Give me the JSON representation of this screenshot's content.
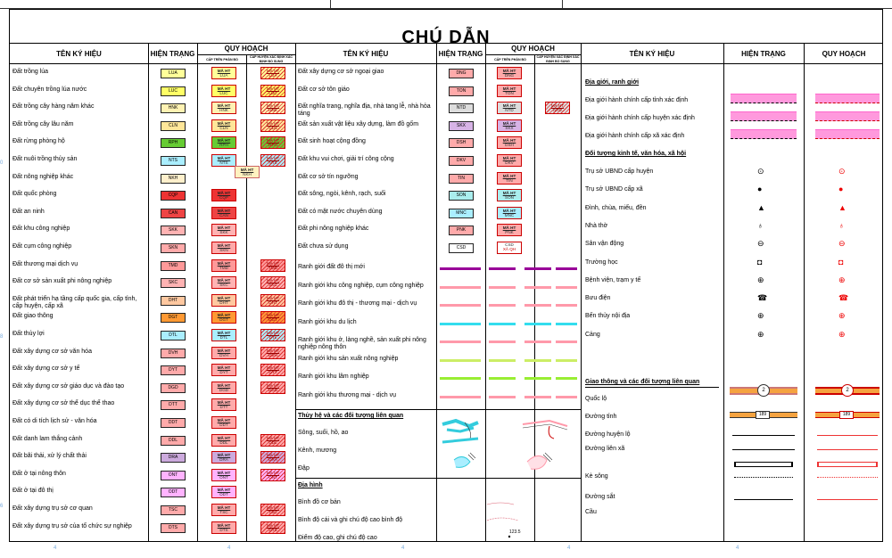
{
  "title": "CHÚ DẪN",
  "headers": {
    "col1_name": "TÊN KÝ HIỆU",
    "col1_current": "HIỆN TRẠNG",
    "col1_plan": "QUY HOẠCH",
    "col1_plan_sub1": "CẤP TRÊN PHÂN BỔ",
    "col1_plan_sub2": "CẤP HUYỆN XÁC ĐỊNH XÁC ĐỊNH BỔ SUNG",
    "col2_name": "TÊN KÝ HIỆU",
    "col2_current": "HIỆN TRẠNG",
    "col2_plan": "QUY HOẠCH",
    "col2_plan_sub1": "CẤP TRÊN PHÂN BỔ",
    "col2_plan_sub2": "CẤP HUYỆN XÁC ĐỊNH XÁC ĐỊNH BỔ SUNG",
    "col3_name": "TÊN KÝ HIỆU",
    "col3_current": "HIỆN TRẠNG",
    "col3_plan": "QUY HOẠCH"
  },
  "plan_text": "MÃ HT",
  "colors": {
    "LUA": "#ffff99",
    "LUC": "#ffff66",
    "HNK": "#fff2b3",
    "CLN": "#ffe699",
    "RPH": "#66cc33",
    "NTS": "#aaeeff",
    "NKH": "#fff0cc",
    "CQP": "#ee3333",
    "CAN": "#ee4444",
    "SKK": "#ffb3b3",
    "SKN": "#ffaaaa",
    "TMD": "#ff9999",
    "SKC": "#ffb3b3",
    "DHT": "#ffc8a0",
    "DGT": "#ff9933",
    "DTL": "#aaeeff",
    "DVH": "#ffaaaa",
    "DYT": "#ffaaaa",
    "DGD": "#ffaaaa",
    "DTT": "#ffaaaa",
    "DDT": "#ffaaaa",
    "DDL": "#ffaaaa",
    "DRA": "#ccaadd",
    "ONT": "#ffb3ff",
    "ODT": "#ffb3ff",
    "TSC": "#ffaaaa",
    "DTS": "#ffaaaa",
    "DNG": "#ffaaaa",
    "TON": "#ffaaaa",
    "NTD": "#dddddd",
    "SKX": "#d7b3e6",
    "DSH": "#ffaaaa",
    "DKV": "#ffaaaa",
    "TIN": "#ffaaaa",
    "SON": "#aaeeee",
    "MNC": "#aaeeff",
    "PNK": "#ffaaaa",
    "CSD": "#ffffff"
  },
  "left": [
    {
      "name": "Đất trồng lúa",
      "code": "LUA",
      "plan_up": true,
      "plan_dist": true
    },
    {
      "name": "Đất chuyên trồng lúa nước",
      "code": "LUC",
      "plan_up": true,
      "plan_dist": true
    },
    {
      "name": "Đất trồng cây hàng năm khác",
      "code": "HNK",
      "plan_up": true,
      "plan_dist": true
    },
    {
      "name": "Đất trồng cây lâu năm",
      "code": "CLN",
      "plan_up": true,
      "plan_dist": true
    },
    {
      "name": "Đất rừng phòng hộ",
      "code": "RPH",
      "plan_up": true,
      "plan_dist": true
    },
    {
      "name": "Đất nuôi trồng thủy sản",
      "code": "NTS",
      "plan_up": true,
      "plan_dist": true
    },
    {
      "name": "Đất nông nghiệp khác",
      "code": "NKH",
      "plan_up": false,
      "plan_dist": false
    },
    {
      "name": "Đất quốc phòng",
      "code": "CQP",
      "plan_up": true,
      "plan_dist": false
    },
    {
      "name": "Đất an ninh",
      "code": "CAN",
      "plan_up": true,
      "plan_dist": false
    },
    {
      "name": "Đất khu công nghiệp",
      "code": "SKK",
      "plan_up": true,
      "plan_dist": false
    },
    {
      "name": "Đất cụm công nghiệp",
      "code": "SKN",
      "plan_up": true,
      "plan_dist": false
    },
    {
      "name": "Đất thương mại dịch vụ",
      "code": "TMD",
      "plan_up": true,
      "plan_dist": true
    },
    {
      "name": "Đất cơ sở sản xuất phi nông nghiệp",
      "code": "SKC",
      "plan_up": true,
      "plan_dist": true
    },
    {
      "name": "Đất phát triển hạ tầng cấp quốc gia, cấp tỉnh, cấp huyện, cấp xã",
      "code": "DHT",
      "plan_up": true,
      "plan_dist": true
    },
    {
      "name": "Đất giao thông",
      "code": "DGT",
      "plan_up": true,
      "plan_dist": true
    },
    {
      "name": "Đất thủy lợi",
      "code": "DTL",
      "plan_up": true,
      "plan_dist": true
    },
    {
      "name": "Đất xây dựng cơ sở văn hóa",
      "code": "DVH",
      "plan_up": true,
      "plan_dist": true
    },
    {
      "name": "Đất xây dựng cơ sở y tế",
      "code": "DYT",
      "plan_up": true,
      "plan_dist": true
    },
    {
      "name": "Đất xây dựng cơ sở giáo dục và đào tạo",
      "code": "DGD",
      "plan_up": true,
      "plan_dist": true
    },
    {
      "name": "Đất xây dựng cơ sở thể dục thể thao",
      "code": "DTT",
      "plan_up": true,
      "plan_dist": false
    },
    {
      "name": "Đất có di tích lịch sử - văn hóa",
      "code": "DDT",
      "plan_up": true,
      "plan_dist": false
    },
    {
      "name": "Đất danh lam thắng cảnh",
      "code": "DDL",
      "plan_up": true,
      "plan_dist": true
    },
    {
      "name": "Đất bãi thải, xử lý chất thải",
      "code": "DRA",
      "plan_up": true,
      "plan_dist": true
    },
    {
      "name": "Đất ở tại nông thôn",
      "code": "ONT",
      "plan_up": true,
      "plan_dist": true
    },
    {
      "name": "Đất ở tại đô thị",
      "code": "ODT",
      "plan_up": true,
      "plan_dist": false
    },
    {
      "name": "Đất xây dựng trụ sở cơ quan",
      "code": "TSC",
      "plan_up": true,
      "plan_dist": true
    },
    {
      "name": "Đất xây dựng trụ sở của tổ chức sự nghiệp",
      "code": "DTS",
      "plan_up": true,
      "plan_dist": true
    }
  ],
  "middle": [
    {
      "name": "Đất xây dựng cơ sở ngoại giao",
      "code": "DNG",
      "plan_up": true,
      "plan_dist": false
    },
    {
      "name": "Đất cơ sở tôn giáo",
      "code": "TON",
      "plan_up": true,
      "plan_dist": false
    },
    {
      "name": "Đất nghĩa trang, nghĩa địa, nhà tang lễ, nhà hỏa táng",
      "code": "NTD",
      "plan_up": true,
      "plan_dist": true
    },
    {
      "name": "Đất sản xuất vật liệu xây dựng, làm đồ gốm",
      "code": "SKX",
      "plan_up": true,
      "plan_dist": false
    },
    {
      "name": "Đất sinh hoạt cộng đồng",
      "code": "DSH",
      "plan_up": true,
      "plan_dist": false
    },
    {
      "name": "Đất khu vui chơi, giải trí công cộng",
      "code": "DKV",
      "plan_up": true,
      "plan_dist": false
    },
    {
      "name": "Đất cơ sở tín ngưỡng",
      "code": "TIN",
      "plan_up": true,
      "plan_dist": false
    },
    {
      "name": "Đất sông, ngòi, kênh, rạch, suối",
      "code": "SON",
      "plan_up": true,
      "plan_dist": false
    },
    {
      "name": "Đất có mặt nước chuyên dùng",
      "code": "MNC",
      "plan_up": true,
      "plan_dist": false
    },
    {
      "name": "Đất phi nông nghiệp khác",
      "code": "PNK",
      "plan_up": true,
      "plan_dist": false
    },
    {
      "name": "Đất chưa sử dụng",
      "code": "CSD",
      "plan_up": true,
      "plan_dist": false
    }
  ],
  "nkh_plan_text": "MÃ HT",
  "nkh_plan_code": "NKH",
  "csd_plan_code": "XÃ QH",
  "boundaries": [
    {
      "name": "Ranh giới đất đô thị mới",
      "color": "#990099"
    },
    {
      "name": "Ranh giới khu công nghiệp, cụm công nghiệp",
      "color": "#ff99aa"
    },
    {
      "name": "Ranh giới khu đô thị - thương mại - dịch vụ",
      "color": "#ff99aa"
    },
    {
      "name": "Ranh giới khu du lịch",
      "color": "#33ddee"
    },
    {
      "name": "Ranh giới khu ở, làng nghề, sản xuất phi nông nghiệp nông thôn",
      "color": "#ff99aa"
    },
    {
      "name": "Ranh giới khu sản xuất nông nghiệp",
      "color": "#ccee66"
    },
    {
      "name": "Ranh giới khu lâm nghiệp",
      "color": "#99ee33"
    },
    {
      "name": "Ranh giới khu thương mại - dịch vụ",
      "color": "#ff99aa"
    }
  ],
  "hydro": {
    "heading": "Thủy hệ và các đối tượng liên quan",
    "items": [
      "Sông, suối, hồ, ao",
      "Kênh, mương",
      "Đập"
    ]
  },
  "terrain": {
    "heading": "Địa hình",
    "items": [
      "Bình đồ cơ bản",
      "Bình độ cái và ghi chú độ cao bình độ",
      "Điểm độ cao, ghi chú độ cao"
    ],
    "elevation_label": "123.5"
  },
  "right": {
    "section1": "Địa giới, ranh giới",
    "boundaries": [
      "Địa giới hành chính cấp tỉnh xác định",
      "Địa giới hành chính cấp huyện xác định",
      "Địa giới hành chính cấp xã xác định"
    ],
    "section2": "Đối tượng kinh tế, văn hóa, xã hội",
    "objects": [
      "Trụ sở UBND cấp huyện",
      "Trụ sở UBND cấp xã",
      "Đình, chùa, miếu, đền",
      "Nhà thờ",
      "Sân vận động",
      "Trường học",
      "Bệnh viện, trạm y tế",
      "Bưu điện",
      "Bến thủy nội địa",
      "Cảng"
    ],
    "section3": "Giao thông và các đối tượng liên quan",
    "transport": [
      "Quốc lộ",
      "Đường tỉnh",
      "Đường huyện lộ",
      "Đường liên xã",
      "Kè sông",
      "Đường sắt",
      "Cầu"
    ],
    "ql_label": "2",
    "dt_label": "189"
  },
  "margin_numbers": {
    "left": [
      "0",
      "8",
      "6"
    ],
    "bottom": [
      "4",
      "4",
      "4",
      "4",
      "4",
      "4",
      "4"
    ]
  }
}
